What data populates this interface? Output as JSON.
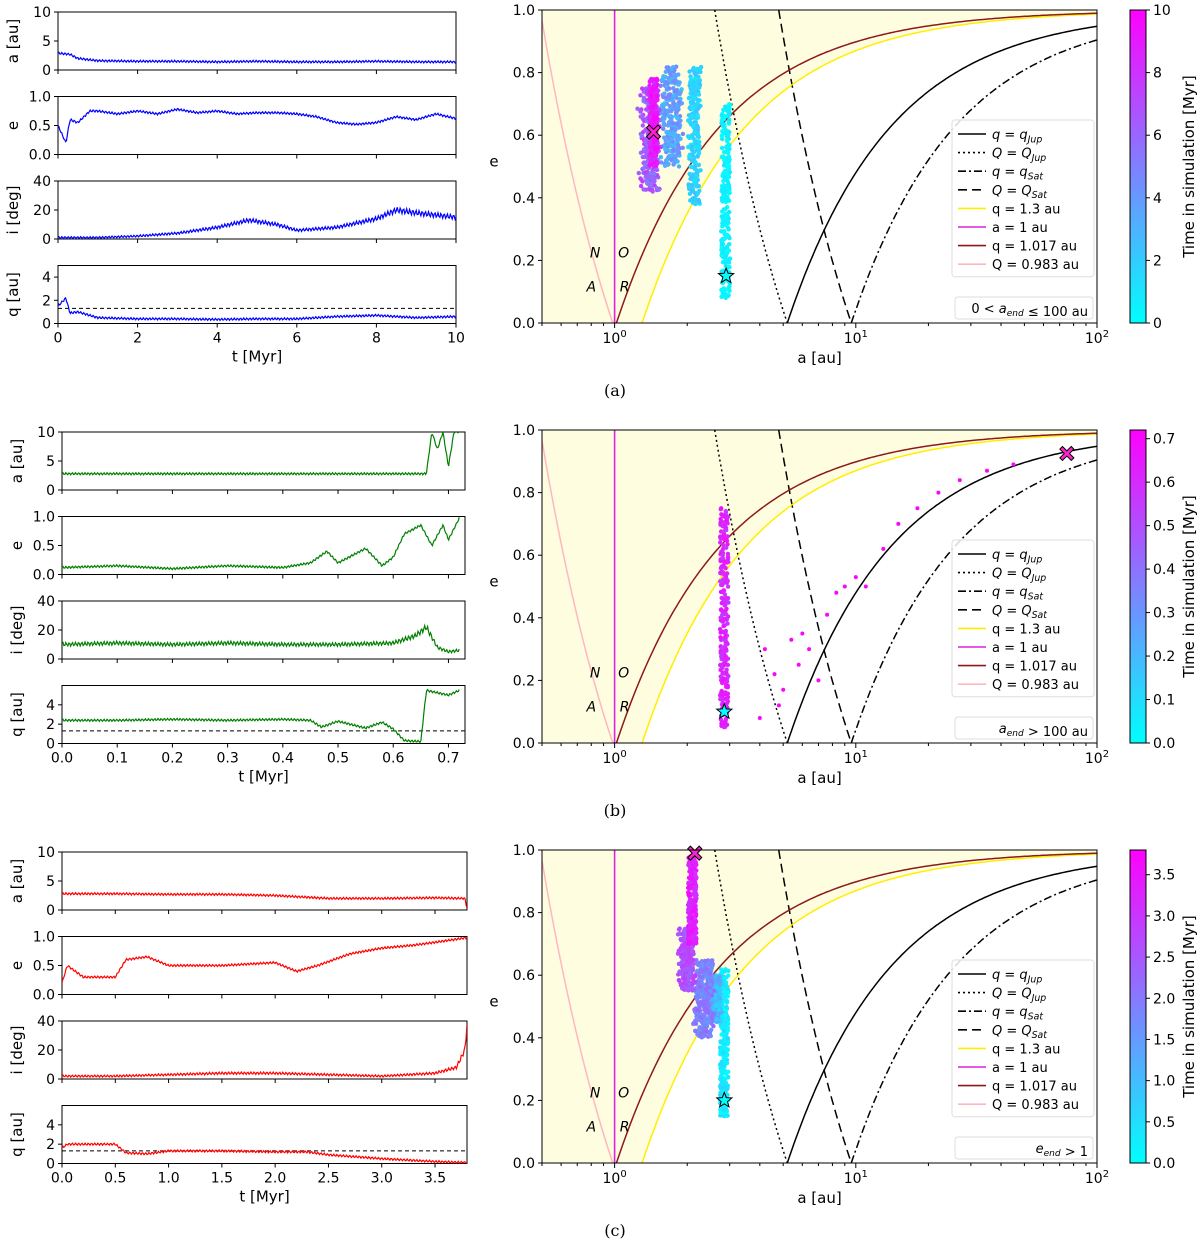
{
  "figure": {
    "captions": [
      "(a)",
      "(b)",
      "(c)"
    ],
    "left_panel_ylabels": [
      "a [au]",
      "e",
      "i [deg]",
      "q [au]"
    ],
    "left_xlabel": "t [Myr]",
    "right_xlabel": "a [au]",
    "right_ylabel": "e",
    "colorbar_label": "Time in simulation [Myr]",
    "region_letters": [
      "A",
      "N",
      "O",
      "R"
    ],
    "legend": [
      {
        "label": "q = q_Jup",
        "style": "solid",
        "color": "#000000"
      },
      {
        "label": "Q = Q_Jup",
        "style": "dotted",
        "color": "#000000"
      },
      {
        "label": "q = q_Sat",
        "style": "dashdot",
        "color": "#000000"
      },
      {
        "label": "Q = Q_Sat",
        "style": "dashed",
        "color": "#000000"
      },
      {
        "label": "q = 1.3 au",
        "style": "solid",
        "color": "#ffee00"
      },
      {
        "label": "a = 1 au",
        "style": "solid",
        "color": "#dd22dd"
      },
      {
        "label": "q = 1.017 au",
        "style": "solid",
        "color": "#8b1a1a"
      },
      {
        "label": "Q = 0.983 au",
        "style": "solid",
        "color": "#ffb6c1"
      }
    ],
    "colors": {
      "neo_region": "#fffde0",
      "colormap_start": "#00ffff",
      "colormap_end": "#ff00ff",
      "q_limit_line": "#000000"
    }
  },
  "chart_data": [
    {
      "type": "line",
      "panel": "a-left",
      "color": "#0000ff",
      "x_label": "t [Myr]",
      "xlim": [
        0,
        10
      ],
      "xticks": [
        0,
        2,
        4,
        6,
        8,
        10
      ],
      "subplots": [
        {
          "ylabel": "a [au]",
          "ylim": [
            0,
            10
          ],
          "yticks": [
            0,
            5,
            10
          ],
          "x": [
            0,
            0.3,
            0.5,
            1,
            2,
            3,
            4,
            5,
            6,
            7,
            8,
            9,
            10
          ],
          "y": [
            2.9,
            2.7,
            2.0,
            1.6,
            1.5,
            1.5,
            1.4,
            1.5,
            1.4,
            1.4,
            1.5,
            1.4,
            1.4
          ]
        },
        {
          "ylabel": "e",
          "ylim": [
            0,
            1
          ],
          "yticks": [
            0.0,
            0.5,
            1.0
          ],
          "x": [
            0,
            0.2,
            0.3,
            0.5,
            0.8,
            1,
            1.5,
            2,
            2.5,
            3,
            3.5,
            4,
            4.5,
            5,
            5.5,
            6,
            6.5,
            7,
            7.5,
            8,
            8.5,
            9,
            9.5,
            10
          ],
          "y": [
            0.5,
            0.2,
            0.6,
            0.55,
            0.75,
            0.75,
            0.7,
            0.75,
            0.7,
            0.78,
            0.72,
            0.75,
            0.7,
            0.72,
            0.72,
            0.7,
            0.65,
            0.55,
            0.52,
            0.55,
            0.65,
            0.6,
            0.7,
            0.62
          ]
        },
        {
          "ylabel": "i [deg]",
          "ylim": [
            0,
            40
          ],
          "yticks": [
            0,
            20,
            40
          ],
          "x": [
            0,
            1,
            2,
            3,
            4,
            4.8,
            5.5,
            6,
            7,
            8,
            8.5,
            9,
            10
          ],
          "y": [
            1,
            1,
            2,
            4,
            8,
            13,
            10,
            6,
            8,
            14,
            20,
            18,
            15
          ]
        },
        {
          "ylabel": "q [au]",
          "ylim": [
            0,
            5
          ],
          "yticks": [
            0,
            2,
            4
          ],
          "qlimit": 1.3,
          "x": [
            0,
            0.2,
            0.3,
            0.5,
            1,
            2,
            3,
            4,
            5,
            6,
            7,
            8,
            9,
            10
          ],
          "y": [
            1.5,
            2.2,
            0.9,
            1.0,
            0.5,
            0.4,
            0.4,
            0.35,
            0.4,
            0.4,
            0.6,
            0.7,
            0.5,
            0.6
          ]
        }
      ]
    },
    {
      "type": "scatter",
      "panel": "a-right",
      "x_label": "a [au]",
      "y_label": "e",
      "xscale": "log",
      "xlim": [
        0.5,
        100
      ],
      "ylim": [
        0,
        1
      ],
      "yticks": [
        0.0,
        0.2,
        0.4,
        0.6,
        0.8,
        1.0
      ],
      "xtick_labels": [
        "10^0",
        "10^1",
        "10^2"
      ],
      "colorbar": {
        "min": 0,
        "max": 10,
        "ticks": [
          0,
          2,
          4,
          6,
          8,
          10
        ]
      },
      "legend_location": "right",
      "annotation": "0 < a_end ≤ 100 au",
      "start_point": {
        "a": 2.9,
        "e": 0.15
      },
      "end_point": {
        "a": 1.45,
        "e": 0.61
      },
      "trajectory_segments": [
        {
          "t": [
            0,
            1
          ],
          "a": [
            2.9,
            2.88
          ],
          "e": [
            0.08,
            0.7
          ]
        },
        {
          "t": [
            1,
            2.5
          ],
          "a": [
            2.2,
            2.1
          ],
          "e": [
            0.38,
            0.82
          ]
        },
        {
          "t": [
            2.5,
            5
          ],
          "a": [
            1.85,
            1.6
          ],
          "e": [
            0.5,
            0.82
          ]
        },
        {
          "t": [
            5,
            8
          ],
          "a": [
            1.5,
            1.3
          ],
          "e": [
            0.42,
            0.75
          ]
        },
        {
          "t": [
            8,
            10
          ],
          "a": [
            1.45,
            1.45
          ],
          "e": [
            0.5,
            0.78
          ]
        }
      ]
    },
    {
      "type": "line",
      "panel": "b-left",
      "color": "#008000",
      "x_label": "t [Myr]",
      "xlim": [
        0,
        0.73
      ],
      "xticks": [
        0.0,
        0.1,
        0.2,
        0.3,
        0.4,
        0.5,
        0.6,
        0.7
      ],
      "subplots": [
        {
          "ylabel": "a [au]",
          "ylim": [
            0,
            10
          ],
          "yticks": [
            0,
            5,
            10
          ],
          "x": [
            0,
            0.1,
            0.2,
            0.3,
            0.4,
            0.5,
            0.6,
            0.64,
            0.66,
            0.67,
            0.68,
            0.69,
            0.7,
            0.71,
            0.72
          ],
          "y": [
            2.8,
            2.8,
            2.8,
            2.8,
            2.8,
            2.8,
            2.8,
            2.8,
            2.8,
            10,
            7,
            10,
            4,
            10,
            10
          ]
        },
        {
          "ylabel": "e",
          "ylim": [
            0,
            1
          ],
          "yticks": [
            0.0,
            0.5,
            1.0
          ],
          "x": [
            0,
            0.1,
            0.2,
            0.3,
            0.4,
            0.45,
            0.48,
            0.5,
            0.55,
            0.58,
            0.6,
            0.62,
            0.65,
            0.67,
            0.69,
            0.7,
            0.72
          ],
          "y": [
            0.12,
            0.15,
            0.1,
            0.15,
            0.12,
            0.2,
            0.4,
            0.2,
            0.45,
            0.15,
            0.3,
            0.7,
            0.85,
            0.5,
            0.85,
            0.6,
            0.98
          ]
        },
        {
          "ylabel": "i [deg]",
          "ylim": [
            0,
            40
          ],
          "yticks": [
            0,
            20,
            40
          ],
          "x": [
            0,
            0.1,
            0.2,
            0.3,
            0.4,
            0.5,
            0.6,
            0.64,
            0.66,
            0.68,
            0.7,
            0.72
          ],
          "y": [
            10,
            11,
            10,
            11,
            10,
            10,
            11,
            16,
            22,
            8,
            5,
            6
          ]
        },
        {
          "ylabel": "q [au]",
          "ylim": [
            0,
            6
          ],
          "yticks": [
            0,
            2,
            4
          ],
          "qlimit": 1.3,
          "x": [
            0,
            0.1,
            0.2,
            0.3,
            0.4,
            0.45,
            0.47,
            0.5,
            0.55,
            0.58,
            0.6,
            0.62,
            0.65,
            0.66,
            0.7,
            0.72
          ],
          "y": [
            2.4,
            2.4,
            2.5,
            2.4,
            2.5,
            2.4,
            1.7,
            2.3,
            1.6,
            2.2,
            1.5,
            0.3,
            0.2,
            5.5,
            5.0,
            5.5
          ]
        }
      ]
    },
    {
      "type": "scatter",
      "panel": "b-right",
      "x_label": "a [au]",
      "y_label": "e",
      "xscale": "log",
      "xlim": [
        0.5,
        100
      ],
      "ylim": [
        0,
        1
      ],
      "yticks": [
        0.0,
        0.2,
        0.4,
        0.6,
        0.8,
        1.0
      ],
      "xtick_labels": [
        "10^0",
        "10^1",
        "10^2"
      ],
      "colorbar": {
        "min": 0.0,
        "max": 0.72,
        "ticks": [
          0.0,
          0.1,
          0.2,
          0.3,
          0.4,
          0.5,
          0.6,
          0.7
        ]
      },
      "legend_location": "right",
      "annotation": "a_end > 100 au",
      "start_point": {
        "a": 2.85,
        "e": 0.1
      },
      "end_point": {
        "a": 75,
        "e": 0.925
      },
      "trajectory_segments": [
        {
          "t": [
            0.55,
            0.68
          ],
          "a": [
            2.85,
            2.85
          ],
          "e": [
            0.05,
            0.75
          ]
        }
      ],
      "scatter_points": {
        "a": [
          4.2,
          4.6,
          5.0,
          5.4,
          5.8,
          6.4,
          7.0,
          7.6,
          8.3,
          9.0,
          10.0,
          11.0,
          13.0,
          15.0,
          18.0,
          22.0,
          27.0,
          35.0,
          45.0,
          4.0,
          4.8,
          6.0
        ],
        "e": [
          0.3,
          0.22,
          0.17,
          0.33,
          0.25,
          0.3,
          0.2,
          0.41,
          0.48,
          0.5,
          0.53,
          0.5,
          0.62,
          0.7,
          0.75,
          0.8,
          0.84,
          0.87,
          0.89,
          0.08,
          0.12,
          0.35
        ],
        "t": 0.7
      }
    },
    {
      "type": "line",
      "panel": "c-left",
      "color": "#ff0000",
      "x_label": "t [Myr]",
      "xlim": [
        0,
        3.8
      ],
      "xticks": [
        0.0,
        0.5,
        1.0,
        1.5,
        2.0,
        2.5,
        3.0,
        3.5
      ],
      "subplots": [
        {
          "ylabel": "a [au]",
          "ylim": [
            0,
            10
          ],
          "yticks": [
            0,
            5,
            10
          ],
          "x": [
            0,
            0.5,
            1.0,
            1.5,
            2.0,
            2.3,
            2.5,
            3.0,
            3.5,
            3.78,
            3.8
          ],
          "y": [
            2.8,
            2.8,
            2.7,
            2.7,
            2.5,
            2.2,
            2.0,
            2.0,
            2.1,
            2.0,
            0.3
          ]
        },
        {
          "ylabel": "e",
          "ylim": [
            0,
            1
          ],
          "yticks": [
            0.0,
            0.5,
            1.0
          ],
          "x": [
            0,
            0.05,
            0.2,
            0.5,
            0.6,
            0.8,
            1.0,
            1.5,
            2.0,
            2.2,
            2.4,
            2.7,
            3.0,
            3.3,
            3.5,
            3.8
          ],
          "y": [
            0.2,
            0.5,
            0.3,
            0.3,
            0.6,
            0.65,
            0.5,
            0.5,
            0.55,
            0.4,
            0.5,
            0.7,
            0.8,
            0.85,
            0.9,
            0.98
          ]
        },
        {
          "ylabel": "i [deg]",
          "ylim": [
            0,
            40
          ],
          "yticks": [
            0,
            20,
            40
          ],
          "x": [
            0,
            0.5,
            1.0,
            1.5,
            2.0,
            2.5,
            3.0,
            3.5,
            3.7,
            3.78,
            3.8
          ],
          "y": [
            2,
            2,
            3,
            4,
            4,
            3,
            2,
            4,
            8,
            20,
            38
          ]
        },
        {
          "ylabel": "q [au]",
          "ylim": [
            0,
            6
          ],
          "yticks": [
            0,
            2,
            4
          ],
          "qlimit": 1.3,
          "x": [
            0,
            0.05,
            0.5,
            0.6,
            0.8,
            1.0,
            1.5,
            2.0,
            2.3,
            2.5,
            3.0,
            3.5,
            3.8
          ],
          "y": [
            1.6,
            2.0,
            2.0,
            1.1,
            1.0,
            1.3,
            1.3,
            1.2,
            1.2,
            0.9,
            0.5,
            0.2,
            0.1
          ]
        }
      ]
    },
    {
      "type": "scatter",
      "panel": "c-right",
      "x_label": "a [au]",
      "y_label": "e",
      "xscale": "log",
      "xlim": [
        0.5,
        100
      ],
      "ylim": [
        0,
        1
      ],
      "yticks": [
        0.0,
        0.2,
        0.4,
        0.6,
        0.8,
        1.0
      ],
      "xtick_labels": [
        "10^0",
        "10^1",
        "10^2"
      ],
      "colorbar": {
        "min": 0.0,
        "max": 3.8,
        "ticks": [
          0.0,
          0.5,
          1.0,
          1.5,
          2.0,
          2.5,
          3.0,
          3.5
        ]
      },
      "legend_location": "right",
      "annotation": "e_end > 1",
      "start_point": {
        "a": 2.85,
        "e": 0.2
      },
      "end_point": {
        "a": 2.15,
        "e": 0.99
      },
      "trajectory_segments": [
        {
          "t": [
            0,
            0.6
          ],
          "a": [
            2.85,
            2.85
          ],
          "e": [
            0.15,
            0.62
          ]
        },
        {
          "t": [
            0.6,
            1.5
          ],
          "a": [
            2.7,
            2.5
          ],
          "e": [
            0.45,
            0.6
          ]
        },
        {
          "t": [
            1.5,
            2.3
          ],
          "a": [
            2.5,
            2.2
          ],
          "e": [
            0.4,
            0.65
          ]
        },
        {
          "t": [
            2.3,
            3.0
          ],
          "a": [
            2.1,
            1.9
          ],
          "e": [
            0.55,
            0.75
          ]
        },
        {
          "t": [
            3.0,
            3.8
          ],
          "a": [
            2.1,
            2.1
          ],
          "e": [
            0.7,
            0.98
          ]
        }
      ]
    }
  ]
}
